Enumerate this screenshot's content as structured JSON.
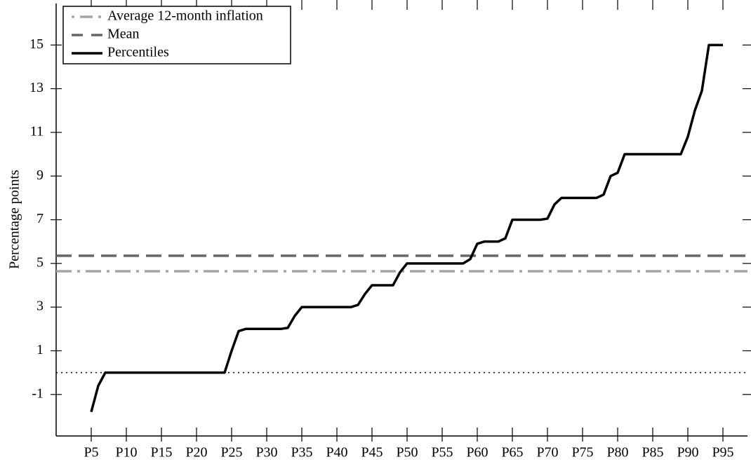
{
  "chart_data": {
    "type": "line",
    "y_label": "Percentage points",
    "x": [
      5,
      6,
      7,
      8,
      9,
      10,
      11,
      12,
      13,
      14,
      15,
      16,
      17,
      18,
      19,
      20,
      21,
      22,
      23,
      24,
      25,
      26,
      27,
      28,
      29,
      30,
      31,
      32,
      33,
      34,
      35,
      36,
      37,
      38,
      39,
      40,
      41,
      42,
      43,
      44,
      45,
      46,
      47,
      48,
      49,
      50,
      51,
      52,
      53,
      54,
      55,
      56,
      57,
      58,
      59,
      60,
      61,
      62,
      63,
      64,
      65,
      66,
      67,
      68,
      69,
      70,
      71,
      72,
      73,
      74,
      75,
      76,
      77,
      78,
      79,
      80,
      81,
      82,
      83,
      84,
      85,
      86,
      87,
      88,
      89,
      90,
      91,
      92,
      93,
      94,
      95
    ],
    "series": [
      {
        "name": "Average 12-month inflation",
        "color": "#a6a6a6",
        "style": "dashdot",
        "value": 4.64
      },
      {
        "name": "Mean",
        "color": "#666666",
        "style": "dash",
        "value": 5.35
      },
      {
        "name": "Percentiles",
        "color": "#000000",
        "style": "solid",
        "values": [
          -1.8,
          -0.6,
          0,
          0,
          0,
          0,
          0,
          0,
          0,
          0,
          0,
          0,
          0,
          0,
          0,
          0,
          0,
          0,
          0,
          0,
          1.0,
          1.9,
          2,
          2,
          2,
          2,
          2,
          2,
          2.05,
          2.6,
          3,
          3,
          3,
          3,
          3,
          3,
          3,
          3,
          3.1,
          3.6,
          4,
          4,
          4,
          4,
          4.6,
          5,
          5,
          5,
          5,
          5,
          5,
          5,
          5,
          5,
          5.2,
          5.9,
          6,
          6,
          6,
          6.15,
          7,
          7,
          7,
          7,
          7,
          7.05,
          7.7,
          8,
          8,
          8,
          8,
          8,
          8,
          8.15,
          9,
          9.15,
          10,
          10,
          10,
          10,
          10,
          10,
          10,
          10,
          10,
          10.8,
          12,
          12.9,
          15,
          15,
          15
        ]
      }
    ],
    "zero_line": true,
    "xlim": [
      0,
      98.5
    ],
    "xticks": [
      {
        "value": 5,
        "label": "P5"
      },
      {
        "value": 10,
        "label": "P10"
      },
      {
        "value": 15,
        "label": "P15"
      },
      {
        "value": 20,
        "label": "P20"
      },
      {
        "value": 25,
        "label": "P25"
      },
      {
        "value": 30,
        "label": "P30"
      },
      {
        "value": 35,
        "label": "P35"
      },
      {
        "value": 40,
        "label": "P40"
      },
      {
        "value": 45,
        "label": "P45"
      },
      {
        "value": 50,
        "label": "P50"
      },
      {
        "value": 55,
        "label": "P55"
      },
      {
        "value": 60,
        "label": "P60"
      },
      {
        "value": 65,
        "label": "P65"
      },
      {
        "value": 70,
        "label": "P70"
      },
      {
        "value": 75,
        "label": "P75"
      },
      {
        "value": 80,
        "label": "P80"
      },
      {
        "value": 85,
        "label": "P85"
      },
      {
        "value": 90,
        "label": "P90"
      },
      {
        "value": 95,
        "label": "P95"
      }
    ],
    "ylim": [
      -2.9,
      16.9
    ],
    "yticks": [
      -1,
      1,
      3,
      5,
      7,
      9,
      11,
      13,
      15
    ],
    "legend": "top-left"
  }
}
